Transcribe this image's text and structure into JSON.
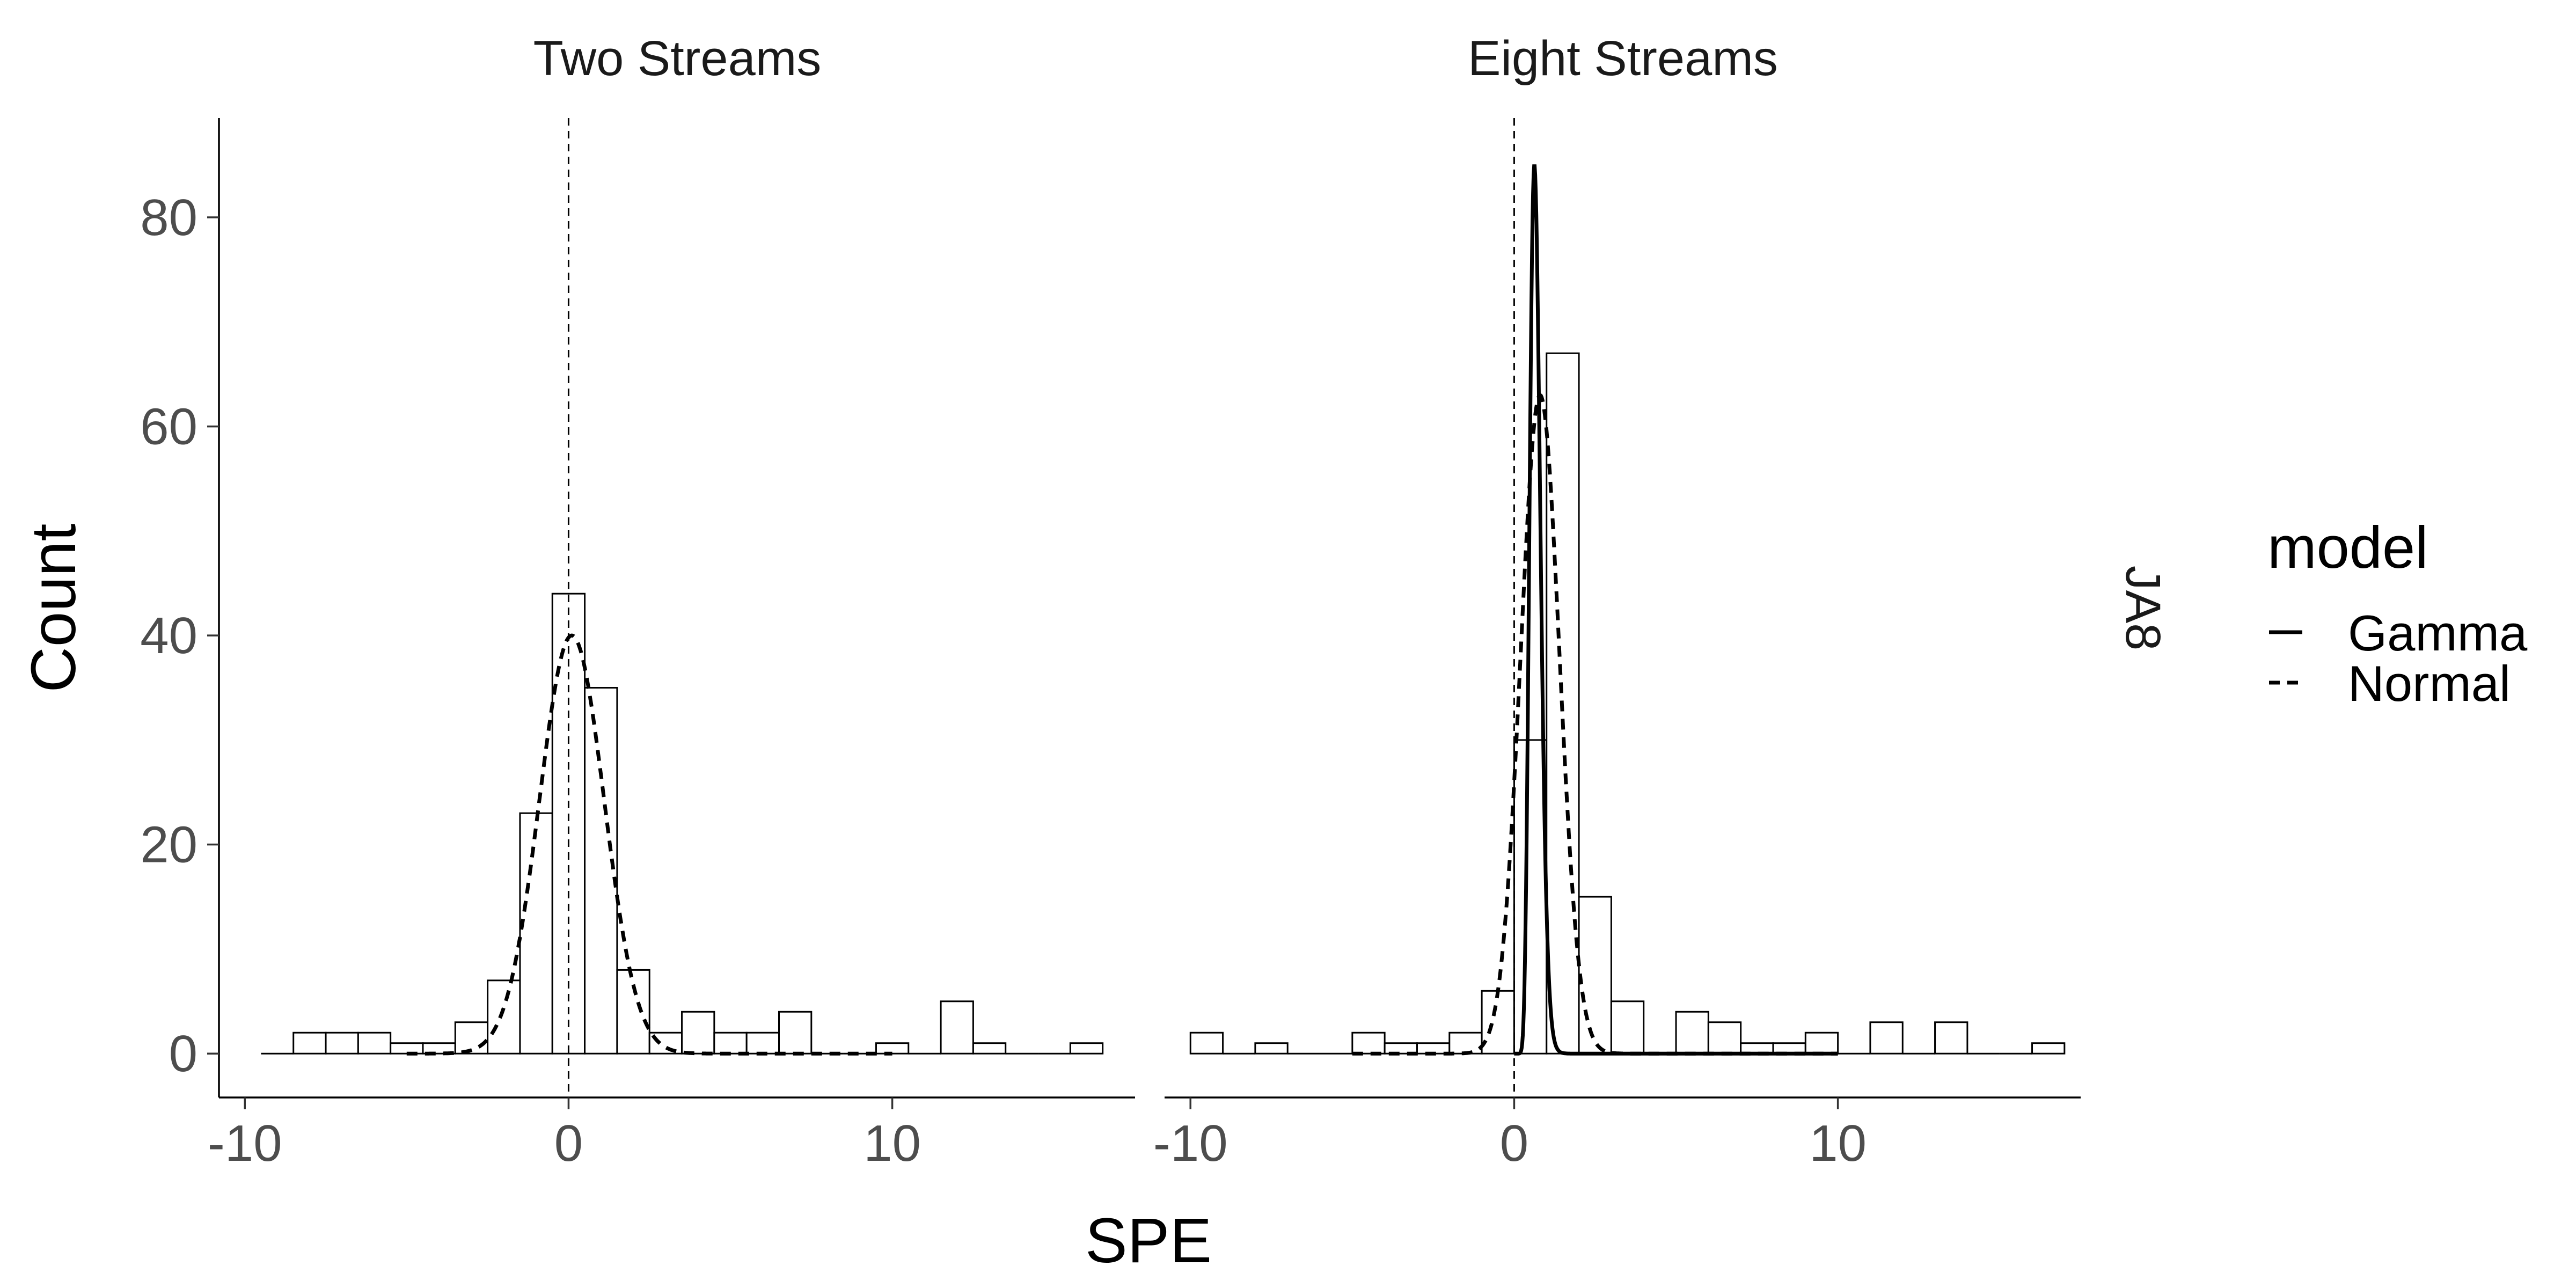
{
  "chart_data": {
    "type": "histogram",
    "xlabel": "SPE",
    "ylabel": "Count",
    "xlim": [
      -10.8,
      17.5
    ],
    "ylim": [
      -4.2,
      89.5
    ],
    "x_ticks": [
      -10,
      0,
      10
    ],
    "x_tick_labels": [
      "-10",
      "0",
      "10"
    ],
    "y_ticks": [
      0,
      20,
      40,
      60,
      80
    ],
    "y_tick_labels": [
      "0",
      "20",
      "40",
      "60",
      "80"
    ],
    "reference_line_x": 0,
    "grid": false,
    "row_facet_label": "JA8",
    "legend": {
      "title": "model",
      "position": "right",
      "entries": [
        {
          "label": "Gamma",
          "linetype": "solid"
        },
        {
          "label": "Normal",
          "linetype": "dashed"
        }
      ]
    },
    "panels": [
      {
        "title": "Two Streams",
        "bin_width": 1.0,
        "bins": [
          {
            "x0": -9.5,
            "x1": -8.5,
            "count": 0
          },
          {
            "x0": -8.5,
            "x1": -7.5,
            "count": 2
          },
          {
            "x0": -7.5,
            "x1": -6.5,
            "count": 2
          },
          {
            "x0": -6.5,
            "x1": -5.5,
            "count": 2
          },
          {
            "x0": -5.5,
            "x1": -4.5,
            "count": 1
          },
          {
            "x0": -4.5,
            "x1": -3.5,
            "count": 1
          },
          {
            "x0": -3.5,
            "x1": -2.5,
            "count": 3
          },
          {
            "x0": -2.5,
            "x1": -1.5,
            "count": 7
          },
          {
            "x0": -1.5,
            "x1": -0.5,
            "count": 23
          },
          {
            "x0": -0.5,
            "x1": 0.5,
            "count": 44
          },
          {
            "x0": 0.5,
            "x1": 1.5,
            "count": 35
          },
          {
            "x0": 1.5,
            "x1": 2.5,
            "count": 8
          },
          {
            "x0": 2.5,
            "x1": 3.5,
            "count": 2
          },
          {
            "x0": 3.5,
            "x1": 4.5,
            "count": 4
          },
          {
            "x0": 4.5,
            "x1": 5.5,
            "count": 2
          },
          {
            "x0": 5.5,
            "x1": 6.5,
            "count": 2
          },
          {
            "x0": 6.5,
            "x1": 7.5,
            "count": 4
          },
          {
            "x0": 7.5,
            "x1": 8.5,
            "count": 0
          },
          {
            "x0": 8.5,
            "x1": 9.5,
            "count": 0
          },
          {
            "x0": 9.5,
            "x1": 10.5,
            "count": 1
          },
          {
            "x0": 10.5,
            "x1": 11.5,
            "count": 0
          },
          {
            "x0": 11.5,
            "x1": 12.5,
            "count": 5
          },
          {
            "x0": 12.5,
            "x1": 13.5,
            "count": 1
          },
          {
            "x0": 13.5,
            "x1": 14.5,
            "count": 0
          },
          {
            "x0": 14.5,
            "x1": 15.5,
            "count": 0
          },
          {
            "x0": 15.5,
            "x1": 16.5,
            "count": 1
          }
        ],
        "series": [
          {
            "name": "Normal",
            "linetype": "dashed",
            "mean": 0.1,
            "sd": 1.0,
            "peak": 40,
            "x_range": [
              -5,
              10
            ]
          }
        ]
      },
      {
        "title": "Eight Streams",
        "bin_width": 1.0,
        "bins": [
          {
            "x0": -10.0,
            "x1": -9.0,
            "count": 2
          },
          {
            "x0": -9.0,
            "x1": -8.0,
            "count": 0
          },
          {
            "x0": -8.0,
            "x1": -7.0,
            "count": 1
          },
          {
            "x0": -7.0,
            "x1": -6.0,
            "count": 0
          },
          {
            "x0": -6.0,
            "x1": -5.0,
            "count": 0
          },
          {
            "x0": -5.0,
            "x1": -4.0,
            "count": 2
          },
          {
            "x0": -4.0,
            "x1": -3.0,
            "count": 1
          },
          {
            "x0": -3.0,
            "x1": -2.0,
            "count": 1
          },
          {
            "x0": -2.0,
            "x1": -1.0,
            "count": 2
          },
          {
            "x0": -1.0,
            "x1": 0.0,
            "count": 6
          },
          {
            "x0": 0.0,
            "x1": 1.0,
            "count": 30
          },
          {
            "x0": 1.0,
            "x1": 2.0,
            "count": 67
          },
          {
            "x0": 2.0,
            "x1": 3.0,
            "count": 15
          },
          {
            "x0": 3.0,
            "x1": 4.0,
            "count": 5
          },
          {
            "x0": 4.0,
            "x1": 5.0,
            "count": 0
          },
          {
            "x0": 5.0,
            "x1": 6.0,
            "count": 4
          },
          {
            "x0": 6.0,
            "x1": 7.0,
            "count": 3
          },
          {
            "x0": 7.0,
            "x1": 8.0,
            "count": 1
          },
          {
            "x0": 8.0,
            "x1": 9.0,
            "count": 1
          },
          {
            "x0": 9.0,
            "x1": 10.0,
            "count": 2
          },
          {
            "x0": 10.0,
            "x1": 11.0,
            "count": 0
          },
          {
            "x0": 11.0,
            "x1": 12.0,
            "count": 3
          },
          {
            "x0": 12.0,
            "x1": 13.0,
            "count": 0
          },
          {
            "x0": 13.0,
            "x1": 14.0,
            "count": 3
          },
          {
            "x0": 14.0,
            "x1": 15.0,
            "count": 0
          },
          {
            "x0": 15.0,
            "x1": 16.0,
            "count": 0
          },
          {
            "x0": 16.0,
            "x1": 17.0,
            "count": 1
          }
        ],
        "series": [
          {
            "name": "Gamma",
            "linetype": "solid",
            "shape": 15,
            "rate": 22.4,
            "peak": 85,
            "mode": 0.625,
            "x_range": [
              0,
              10
            ]
          },
          {
            "name": "Normal",
            "linetype": "dashed",
            "mean": 0.8,
            "sd": 0.6,
            "peak": 63,
            "x_range": [
              -5,
              10
            ]
          }
        ]
      }
    ]
  }
}
